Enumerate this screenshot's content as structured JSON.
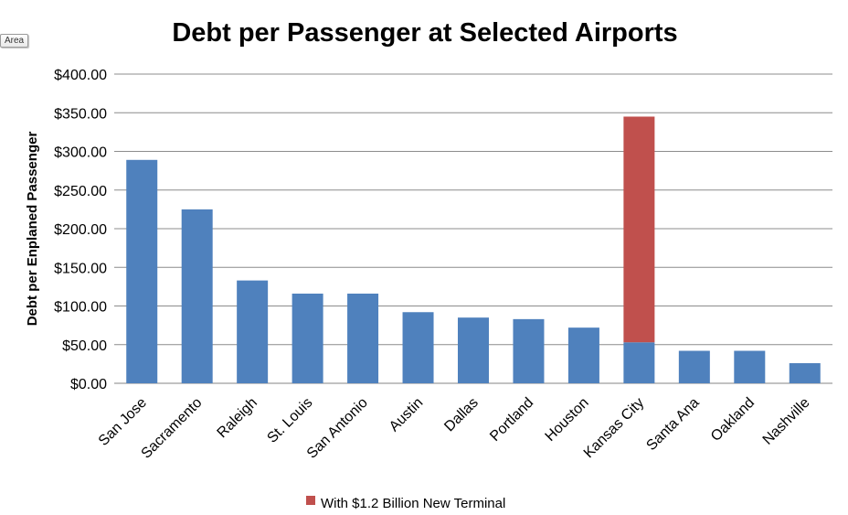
{
  "chart_data": {
    "type": "bar",
    "stacked": true,
    "title": "Debt per Passenger at Selected Airports",
    "xlabel": "",
    "ylabel": "Debt per Enplaned Passenger",
    "ylim": [
      0,
      400
    ],
    "yticks": [
      "$0.00",
      "$50.00",
      "$100.00",
      "$150.00",
      "$200.00",
      "$250.00",
      "$300.00",
      "$350.00",
      "$400.00"
    ],
    "ytick_values": [
      0,
      50,
      100,
      150,
      200,
      250,
      300,
      350,
      400
    ],
    "grid": true,
    "categories": [
      "San Jose",
      "Sacramento",
      "Raleigh",
      "St. Louis",
      "San Antonio",
      "Austin",
      "Dallas",
      "Portland",
      "Houston",
      "Kansas City",
      "Santa Ana",
      "Oakland",
      "Nashville"
    ],
    "series": [
      {
        "name": "Debt per Enplaned Passenger",
        "color": "#4F81BD",
        "show_in_legend": false,
        "values": [
          289,
          225,
          133,
          116,
          116,
          92,
          85,
          83,
          72,
          53,
          42,
          42,
          26
        ]
      },
      {
        "name": "With $1.2 Billion New Terminal",
        "color": "#C0504D",
        "show_in_legend": true,
        "values": [
          0,
          0,
          0,
          0,
          0,
          0,
          0,
          0,
          0,
          292,
          0,
          0,
          0
        ]
      }
    ],
    "legend": {
      "position": "bottom",
      "label": "With $1.2 Billion New Terminal",
      "color": "#C0504D"
    }
  },
  "tooltip": {
    "label": "Area"
  }
}
